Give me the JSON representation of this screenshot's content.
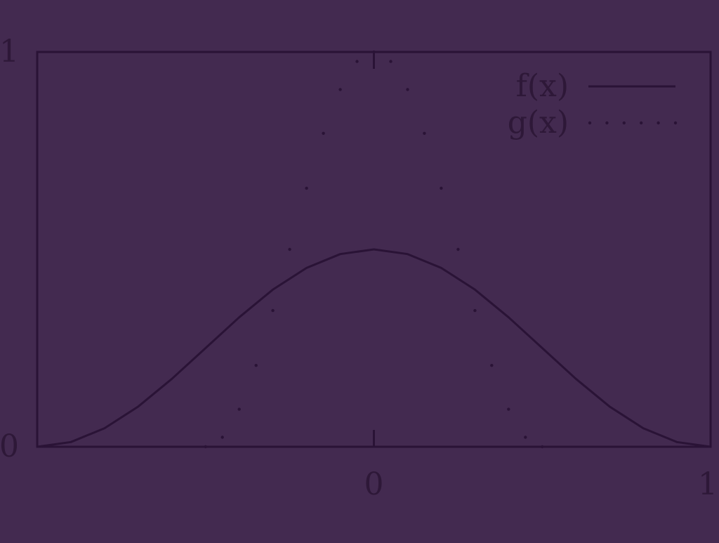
{
  "colors": {
    "background": "#432A50",
    "ink": "#2A1336",
    "label": "#2E1838"
  },
  "chart_data": {
    "type": "line",
    "title": "",
    "xlabel": "",
    "ylabel": "",
    "xlim": [
      -1,
      1
    ],
    "ylim": [
      0,
      1
    ],
    "grid": false,
    "legend_position": "top-right",
    "x_ticks": [
      {
        "value": 0,
        "label": "0"
      },
      {
        "value": 1,
        "label": "1"
      }
    ],
    "y_ticks": [
      {
        "value": 0,
        "label": "0"
      },
      {
        "value": 1,
        "label": "1"
      }
    ],
    "series": [
      {
        "name": "f(x)",
        "style": "solid",
        "x": [
          -1,
          -0.9,
          -0.8,
          -0.7,
          -0.6,
          -0.5,
          -0.4,
          -0.3,
          -0.2,
          -0.1,
          0,
          0.1,
          0.2,
          0.3,
          0.4,
          0.5,
          0.6,
          0.7,
          0.8,
          0.9,
          1
        ],
        "y": [
          0,
          0.012,
          0.047,
          0.102,
          0.172,
          0.25,
          0.328,
          0.398,
          0.453,
          0.488,
          0.5,
          0.488,
          0.453,
          0.398,
          0.328,
          0.25,
          0.172,
          0.102,
          0.047,
          0.012,
          0
        ]
      },
      {
        "name": "g(x)",
        "style": "dotted",
        "x": [
          -0.5,
          -0.45,
          -0.4,
          -0.35,
          -0.3,
          -0.25,
          -0.2,
          -0.15,
          -0.1,
          -0.05,
          0,
          0.05,
          0.1,
          0.15,
          0.2,
          0.25,
          0.3,
          0.35,
          0.4,
          0.45,
          0.5
        ],
        "y": [
          0,
          0.024,
          0.095,
          0.206,
          0.345,
          0.5,
          0.655,
          0.794,
          0.905,
          0.976,
          1,
          0.976,
          0.905,
          0.794,
          0.655,
          0.5,
          0.345,
          0.206,
          0.095,
          0.024,
          0
        ]
      }
    ]
  }
}
